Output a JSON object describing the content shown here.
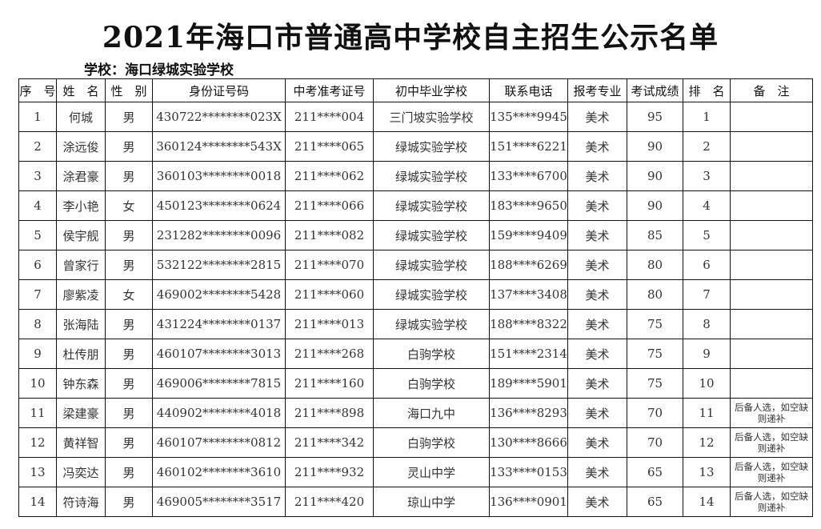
{
  "title": "2021年海口市普通高中学校自主招生公示名单",
  "school_label": "学校：海口绿城实验学校",
  "headers": [
    "序　号",
    "姓　名",
    "性　别",
    "身份证号码",
    "中考准考证号",
    "初中毕业学校",
    "联系电话",
    "报考专业",
    "考试成绩",
    "排　名",
    "备　注"
  ],
  "rows": [
    [
      "1",
      "何城",
      "男",
      "430722********023X",
      "211****004",
      "三门坡实验学校",
      "135****9945",
      "美术",
      "95",
      "1",
      ""
    ],
    [
      "2",
      "涂远俊",
      "男",
      "360124********543X",
      "211****065",
      "绿城实验学校",
      "151****6221",
      "美术",
      "90",
      "2",
      ""
    ],
    [
      "3",
      "涂君豪",
      "男",
      "360103********0018",
      "211****062",
      "绿城实验学校",
      "133****6700",
      "美术",
      "90",
      "3",
      ""
    ],
    [
      "4",
      "李小艳",
      "女",
      "450123********0624",
      "211****066",
      "绿城实验学校",
      "183****9650",
      "美术",
      "90",
      "4",
      ""
    ],
    [
      "5",
      "侯宇舰",
      "男",
      "231282********0096",
      "211****082",
      "绿城实验学校",
      "159****9409",
      "美术",
      "85",
      "5",
      ""
    ],
    [
      "6",
      "曾家行",
      "男",
      "532122********2815",
      "211****070",
      "绿城实验学校",
      "188****6269",
      "美术",
      "80",
      "6",
      ""
    ],
    [
      "7",
      "廖紫凌",
      "女",
      "469002********5428",
      "211****060",
      "绿城实验学校",
      "137****3408",
      "美术",
      "80",
      "7",
      ""
    ],
    [
      "8",
      "张海陆",
      "男",
      "431224********0137",
      "211****013",
      "绿城实验学校",
      "188****8322",
      "美术",
      "75",
      "8",
      ""
    ],
    [
      "9",
      "杜传朋",
      "男",
      "460107********3013",
      "211****268",
      "白驹学校",
      "151****2314",
      "美术",
      "75",
      "9",
      ""
    ],
    [
      "10",
      "钟东森",
      "男",
      "469006********7815",
      "211****160",
      "白驹学校",
      "189****5901",
      "美术",
      "75",
      "10",
      ""
    ],
    [
      "11",
      "梁建豪",
      "男",
      "440902********4018",
      "211****898",
      "海口九中",
      "136****8293",
      "美术",
      "70",
      "11",
      "后备人选，如空缺则递补"
    ],
    [
      "12",
      "黄祥智",
      "男",
      "460107********0812",
      "211****342",
      "白驹学校",
      "130****8666",
      "美术",
      "70",
      "12",
      "后备人选，如空缺则递补"
    ],
    [
      "13",
      "冯奕达",
      "男",
      "460102********3610",
      "211****932",
      "灵山中学",
      "133****0153",
      "美术",
      "65",
      "13",
      "后备人选，如空缺则递补"
    ],
    [
      "14",
      "符诗海",
      "男",
      "469005********3517",
      "211****420",
      "琼山中学",
      "136****0901",
      "美术",
      "65",
      "14",
      "后备人选，如空缺则递补"
    ]
  ]
}
